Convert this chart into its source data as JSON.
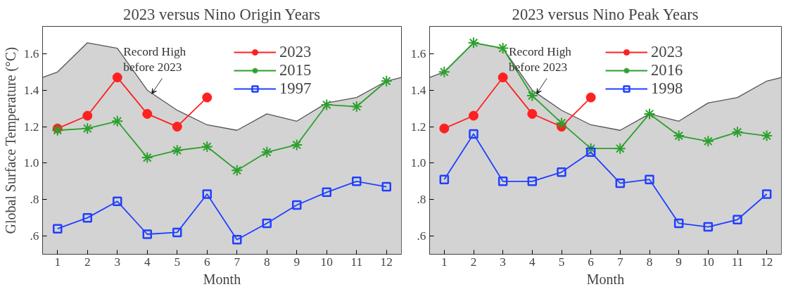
{
  "chart_data": [
    {
      "type": "line",
      "title": "2023 versus Nino Origin Years",
      "xlabel": "Month",
      "ylabel": "Global Surface Temperature (°C)",
      "xlim": [
        0.5,
        12.5
      ],
      "xticks": [
        1,
        2,
        3,
        4,
        5,
        6,
        7,
        8,
        9,
        10,
        11,
        12
      ],
      "ylim": [
        0.5,
        1.75
      ],
      "yticks": [
        {
          "value": 0.6,
          "label": ".6"
        },
        {
          "value": 0.8,
          "label": ".8"
        },
        {
          "value": 1.0,
          "label": "1.0"
        },
        {
          "value": 1.2,
          "label": "1.2"
        },
        {
          "value": 1.4,
          "label": "1.4"
        },
        {
          "value": 1.6,
          "label": "1.6"
        }
      ],
      "grid": false,
      "legend": "top",
      "tick_labels": "xy",
      "annotations": [
        {
          "text": "Record High before 2023",
          "x": 4.15,
          "y": 1.38
        }
      ],
      "series": [
        {
          "type": "area",
          "color": "#d3d3d3",
          "x": [
            0.5,
            1,
            2,
            3,
            4,
            5,
            6,
            7,
            8,
            9,
            10,
            11,
            12,
            12.5
          ],
          "values": [
            1.47,
            1.5,
            1.66,
            1.63,
            1.4,
            1.29,
            1.21,
            1.18,
            1.27,
            1.23,
            1.33,
            1.36,
            1.45,
            1.47
          ]
        },
        {
          "name": "2023",
          "color": "#ff2020",
          "marker": "circle",
          "x": [
            1,
            2,
            3,
            4,
            5,
            6
          ],
          "values": [
            1.19,
            1.26,
            1.47,
            1.27,
            1.2,
            1.36
          ]
        },
        {
          "name": "2015",
          "color": "#2ca02c",
          "marker": "cross",
          "x": [
            1,
            2,
            3,
            4,
            5,
            6,
            7,
            8,
            9,
            10,
            11,
            12
          ],
          "values": [
            1.18,
            1.19,
            1.23,
            1.03,
            1.07,
            1.09,
            0.96,
            1.06,
            1.1,
            1.32,
            1.31,
            1.45
          ]
        },
        {
          "name": "1997",
          "color": "#2040ff",
          "marker": "square",
          "x": [
            1,
            2,
            3,
            4,
            5,
            6,
            7,
            8,
            9,
            10,
            11,
            12
          ],
          "values": [
            0.64,
            0.7,
            0.79,
            0.61,
            0.62,
            0.83,
            0.58,
            0.67,
            0.77,
            0.84,
            0.9,
            0.87
          ]
        }
      ]
    },
    {
      "type": "line",
      "title": "2023 versus Nino Peak Years",
      "xlabel": "Month",
      "xlim": [
        0.5,
        12.5
      ],
      "xticks": [
        1,
        2,
        3,
        4,
        5,
        6,
        7,
        8,
        9,
        10,
        11,
        12
      ],
      "ylim": [
        0.5,
        1.75
      ],
      "yticks": [
        {
          "value": 0.6,
          "label": ".6"
        },
        {
          "value": 0.8,
          "label": ".8"
        },
        {
          "value": 1.0,
          "label": "1.0"
        },
        {
          "value": 1.2,
          "label": "1.2"
        },
        {
          "value": 1.4,
          "label": "1.4"
        },
        {
          "value": 1.6,
          "label": "1.6"
        }
      ],
      "grid": false,
      "legend": "top",
      "annotations": [
        {
          "text": "Record High before 2023",
          "x": 4.15,
          "y": 1.38
        }
      ],
      "series": [
        {
          "type": "area",
          "color": "#d3d3d3",
          "x": [
            0.5,
            1,
            2,
            3,
            4,
            5,
            6,
            7,
            8,
            9,
            10,
            11,
            12,
            12.5
          ],
          "values": [
            1.47,
            1.5,
            1.66,
            1.63,
            1.4,
            1.29,
            1.21,
            1.18,
            1.27,
            1.23,
            1.33,
            1.36,
            1.45,
            1.47
          ]
        },
        {
          "name": "2023",
          "color": "#ff2020",
          "marker": "circle",
          "x": [
            1,
            2,
            3,
            4,
            5,
            6
          ],
          "values": [
            1.19,
            1.26,
            1.47,
            1.27,
            1.2,
            1.36
          ]
        },
        {
          "name": "2016",
          "color": "#2ca02c",
          "marker": "cross",
          "x": [
            1,
            2,
            3,
            4,
            5,
            6,
            7,
            8,
            9,
            10,
            11,
            12
          ],
          "values": [
            1.5,
            1.66,
            1.63,
            1.37,
            1.22,
            1.08,
            1.08,
            1.27,
            1.15,
            1.12,
            1.17,
            1.15
          ]
        },
        {
          "name": "1998",
          "color": "#2040ff",
          "marker": "square",
          "x": [
            1,
            2,
            3,
            4,
            5,
            6,
            7,
            8,
            9,
            10,
            11,
            12
          ],
          "values": [
            0.91,
            1.16,
            0.9,
            0.9,
            0.95,
            1.06,
            0.89,
            0.91,
            0.67,
            0.65,
            0.69,
            0.83
          ]
        }
      ]
    }
  ]
}
